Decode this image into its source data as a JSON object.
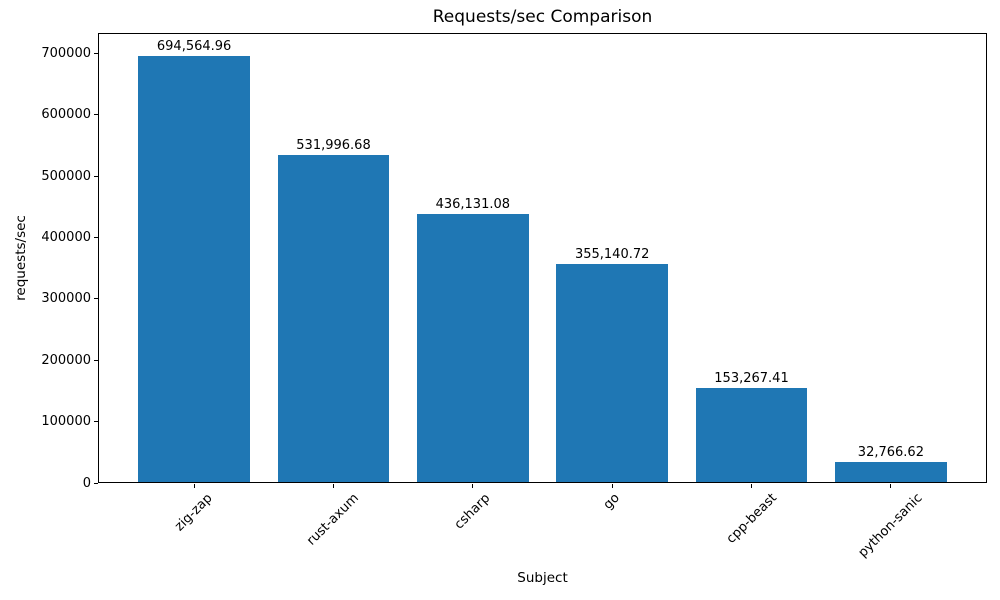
{
  "chart_data": {
    "type": "bar",
    "title": "Requests/sec Comparison",
    "xlabel": "Subject",
    "ylabel": "requests/sec",
    "categories": [
      "zig-zap",
      "rust-axum",
      "csharp",
      "go",
      "cpp-beast",
      "python-sanic"
    ],
    "values": [
      694564.96,
      531996.68,
      436131.08,
      355140.72,
      153267.41,
      32766.62
    ],
    "value_labels": [
      "694,564.96",
      "531,996.68",
      "436,131.08",
      "355,140.72",
      "153,267.41",
      "32,766.62"
    ],
    "yticks": [
      0,
      100000,
      200000,
      300000,
      400000,
      500000,
      600000,
      700000
    ],
    "ytick_labels": [
      "0",
      "100000",
      "200000",
      "300000",
      "400000",
      "500000",
      "600000",
      "700000"
    ],
    "ylim": [
      0,
      733000
    ],
    "xtick_rotation": 45,
    "grid": false,
    "legend": null,
    "bar_color": "#1f77b4",
    "text_color": "#000000"
  }
}
